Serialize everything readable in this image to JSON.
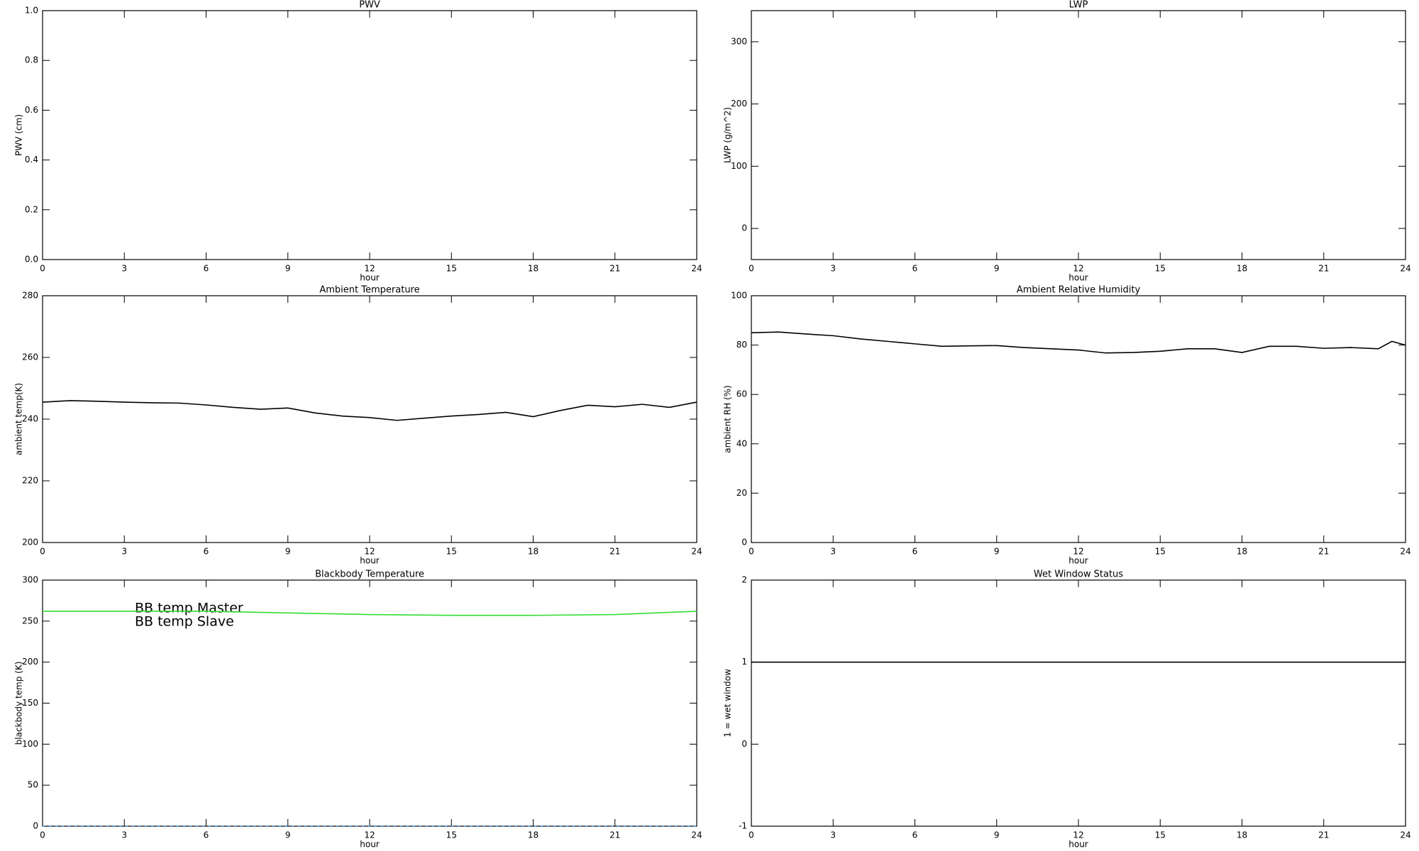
{
  "chart_data": [
    {
      "type": "line",
      "title": "PWV",
      "xlabel": "hour",
      "ylabel": "PWV (cm)",
      "xlim": [
        0,
        24
      ],
      "xticks": [
        0,
        3,
        6,
        9,
        12,
        15,
        18,
        21,
        24
      ],
      "ylim": [
        0,
        1
      ],
      "yticks": [
        {
          "value": 0,
          "label": "0.0"
        },
        0.2,
        0.4,
        0.6,
        0.8,
        {
          "value": 1,
          "label": "1.0"
        }
      ],
      "grid": false
    },
    {
      "type": "line",
      "title": "LWP",
      "xlabel": "hour",
      "ylabel": "LWP (g/m^2)",
      "xlim": [
        0,
        24
      ],
      "xticks": [
        0,
        3,
        6,
        9,
        12,
        15,
        18,
        21,
        24
      ],
      "ylim": [
        -50,
        350
      ],
      "yticks": [
        0,
        100,
        200,
        300
      ],
      "grid": false
    },
    {
      "type": "line",
      "title": "Ambient Temperature",
      "xlabel": "hour",
      "ylabel": "ambient temp(K)",
      "xlim": [
        0,
        24
      ],
      "xticks": [
        0,
        3,
        6,
        9,
        12,
        15,
        18,
        21,
        24
      ],
      "ylim": [
        200,
        280
      ],
      "yticks": [
        200,
        220,
        240,
        260,
        280
      ],
      "grid": false,
      "x": [
        0,
        1,
        2,
        3,
        4,
        5,
        6,
        7,
        8,
        9,
        10,
        11,
        12,
        13,
        14,
        15,
        16,
        17,
        18,
        19,
        20,
        21,
        22,
        23,
        24
      ],
      "series": [
        {
          "color": "#000000",
          "values": [
            245.5,
            246,
            245.8,
            245.5,
            245.3,
            245.2,
            244.6,
            243.8,
            243.2,
            243.6,
            242,
            241,
            240.5,
            239.6,
            240.3,
            241,
            241.5,
            242.2,
            240.8,
            242.8,
            244.5,
            244,
            244.8,
            243.8,
            245.5
          ]
        }
      ]
    },
    {
      "type": "line",
      "title": "Ambient Relative Humidity",
      "xlabel": "hour",
      "ylabel": "ambient RH (%)",
      "xlim": [
        0,
        24
      ],
      "xticks": [
        0,
        3,
        6,
        9,
        12,
        15,
        18,
        21,
        24
      ],
      "ylim": [
        0,
        100
      ],
      "yticks": [
        0,
        20,
        40,
        60,
        80,
        100
      ],
      "grid": false,
      "x": [
        0,
        1,
        2,
        3,
        4,
        5,
        6,
        7,
        8,
        9,
        10,
        11,
        12,
        13,
        14,
        15,
        16,
        17,
        18,
        19,
        20,
        21,
        22,
        23,
        23.5,
        24
      ],
      "series": [
        {
          "color": "#000000",
          "values": [
            85,
            85.3,
            84.5,
            83.8,
            82.5,
            81.5,
            80.5,
            79.5,
            79.7,
            79.8,
            79,
            78.5,
            78,
            76.8,
            77,
            77.5,
            78.5,
            78.5,
            77,
            79.5,
            79.5,
            78.7,
            79,
            78.5,
            81.5,
            80
          ]
        }
      ]
    },
    {
      "type": "line",
      "title": "Blackbody Temperature",
      "xlabel": "hour",
      "ylabel": "blackbody temp (K)",
      "xlim": [
        0,
        24
      ],
      "xticks": [
        0,
        3,
        6,
        9,
        12,
        15,
        18,
        21,
        24
      ],
      "ylim": [
        0,
        300
      ],
      "yticks": [
        0,
        50,
        100,
        150,
        200,
        250,
        300
      ],
      "grid": false,
      "x": [
        0,
        3,
        6,
        9,
        12,
        15,
        18,
        21,
        24
      ],
      "series": [
        {
          "name": "BB temp Master",
          "color": "#3399ff",
          "values": [
            0,
            0,
            0,
            0,
            0,
            0,
            0,
            0,
            0
          ]
        },
        {
          "name": "BB temp Slave",
          "color": "#33dd33",
          "values": [
            262,
            262,
            262,
            260,
            258,
            257,
            257,
            258,
            262
          ]
        }
      ]
    },
    {
      "type": "line",
      "title": "Wet Window Status",
      "xlabel": "hour",
      "ylabel": "1 = wet window",
      "xlim": [
        0,
        24
      ],
      "xticks": [
        0,
        3,
        6,
        9,
        12,
        15,
        18,
        21,
        24
      ],
      "ylim": [
        -1,
        2
      ],
      "yticks": [
        -1,
        0,
        1,
        2
      ],
      "grid": false,
      "x": [
        0,
        24
      ],
      "series": [
        {
          "color": "#000000",
          "values": [
            1,
            1
          ]
        }
      ]
    }
  ]
}
